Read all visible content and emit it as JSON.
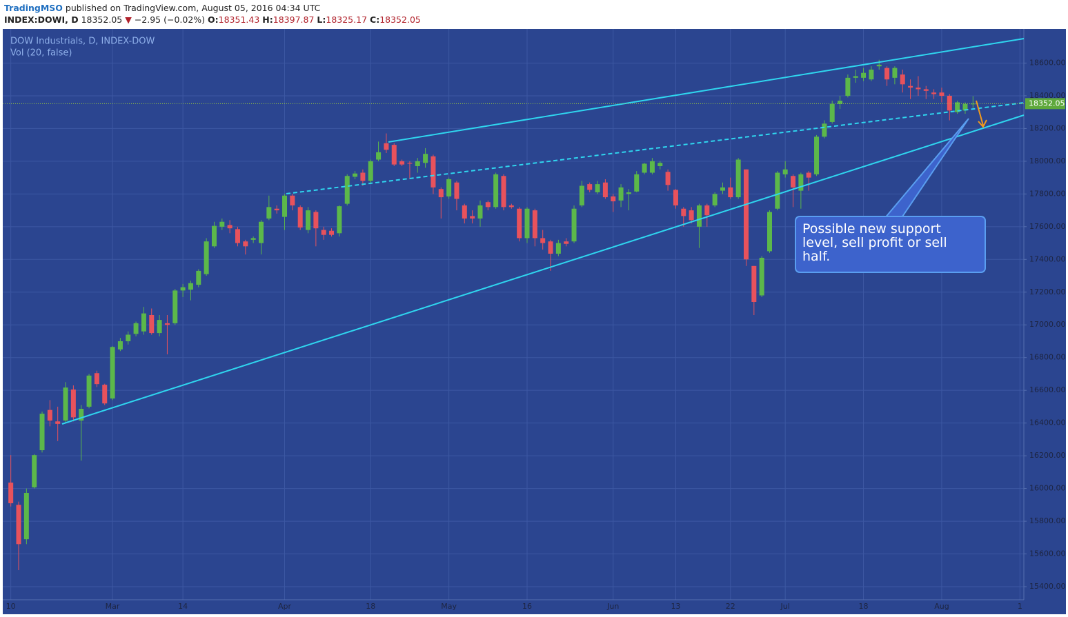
{
  "header": {
    "publisher": "TradingMSO",
    "published": "published on TradingView.com, August 05, 2016 04:34 UTC",
    "symbol": "INDEX:DOWI, D",
    "last": "18352.05",
    "arrow": "▼",
    "change": "−2.95 (−0.02%)",
    "o_label": "O:",
    "o": "18351.43",
    "h_label": "H:",
    "h": "18397.87",
    "l_label": "L:",
    "l": "18325.17",
    "c_label": "C:",
    "c": "18352.05"
  },
  "chart_data": {
    "type": "candlestick",
    "title": "DOW Industrials, D, INDEX-DOW",
    "indicator": "Vol (20, false)",
    "annotation": "Possible new support level, sell profit or sell half.",
    "up_color": "#5cb84a",
    "down_color": "#e8525c",
    "grid": true,
    "ylim": [
      15320,
      18800
    ],
    "yticks": [
      {
        "value": 15400,
        "label": "15400.00"
      },
      {
        "value": 15600,
        "label": "15600.00"
      },
      {
        "value": 15800,
        "label": "15800.00"
      },
      {
        "value": 16000,
        "label": "16000.00"
      },
      {
        "value": 16200,
        "label": "16200.00"
      },
      {
        "value": 16400,
        "label": "16400.00"
      },
      {
        "value": 16600,
        "label": "16600.00"
      },
      {
        "value": 16800,
        "label": "16800.00"
      },
      {
        "value": 17000,
        "label": "17000.00"
      },
      {
        "value": 17200,
        "label": "17200.00"
      },
      {
        "value": 17400,
        "label": "17400.00"
      },
      {
        "value": 17600,
        "label": "17600.00"
      },
      {
        "value": 17800,
        "label": "17800.00"
      },
      {
        "value": 18000,
        "label": "18000.00"
      },
      {
        "value": 18200,
        "label": "18200.00"
      },
      {
        "value": 18400,
        "label": "18400.00"
      },
      {
        "value": 18600,
        "label": "18600.00"
      }
    ],
    "categories": [
      "10",
      null,
      null,
      null,
      null,
      null,
      null,
      null,
      null,
      null,
      null,
      null,
      null,
      "Mar",
      null,
      null,
      null,
      null,
      null,
      null,
      null,
      null,
      "14",
      null,
      null,
      null,
      null,
      null,
      null,
      null,
      null,
      null,
      null,
      null,
      null,
      "Apr",
      null,
      null,
      null,
      null,
      null,
      null,
      null,
      null,
      null,
      null,
      "18",
      null,
      null,
      null,
      null,
      null,
      null,
      null,
      null,
      null,
      "May",
      null,
      null,
      null,
      null,
      null,
      null,
      null,
      null,
      null,
      "16",
      null,
      null,
      null,
      null,
      null,
      null,
      null,
      null,
      null,
      null,
      "Jun",
      null,
      null,
      null,
      null,
      null,
      null,
      null,
      "13",
      null,
      null,
      null,
      null,
      null,
      null,
      "22",
      null,
      null,
      null,
      null,
      null,
      null,
      "Jul",
      null,
      null,
      null,
      null,
      null,
      null,
      null,
      null,
      null,
      "18",
      null,
      null,
      null,
      null,
      null,
      null,
      null,
      null,
      null,
      "Aug",
      null,
      null,
      null,
      null,
      null,
      null,
      null,
      null,
      null,
      "1"
    ],
    "open": [
      16036,
      15900,
      15690,
      16007,
      16234,
      16480,
      16410,
      16415,
      16605,
      16415,
      16500,
      16705,
      16634,
      16550,
      16850,
      16900,
      16945,
      16960,
      17060,
      16950,
      17010,
      17010,
      17210,
      17215,
      17245,
      17310,
      17480,
      17600,
      17610,
      17585,
      17510,
      17520,
      17500,
      17650,
      17710,
      17660,
      17790,
      17720,
      17580,
      17690,
      17580,
      17575,
      17560,
      17740,
      17905,
      17930,
      17880,
      18010,
      18110,
      18100,
      18000,
      17990,
      17970,
      17990,
      18030,
      17830,
      17785,
      17870,
      17730,
      17665,
      17650,
      17750,
      17720,
      17910,
      17730,
      17710,
      17530,
      17700,
      17530,
      17510,
      17435,
      17510,
      17510,
      17730,
      17860,
      17810,
      17870,
      17785,
      17760,
      17800,
      17815,
      17930,
      17930,
      17970,
      17935,
      17825,
      17710,
      17700,
      17600,
      17730,
      17730,
      17820,
      17840,
      17780,
      17950,
      17360,
      17180,
      17450,
      17710,
      17920,
      17910,
      17820,
      17930,
      17920,
      18150,
      18240,
      18350,
      18400,
      18510,
      18510,
      18500,
      18580,
      18570,
      18510,
      18530,
      18460,
      18450,
      18440,
      18420,
      18420,
      18400,
      18300,
      18310,
      18351.43,
      null,
      null,
      null,
      null,
      null,
      null
    ],
    "high": [
      16204,
      15920,
      16000,
      16210,
      16470,
      16540,
      16500,
      16650,
      16630,
      16510,
      16700,
      16720,
      16640,
      16870,
      16920,
      16960,
      17020,
      17110,
      17100,
      17060,
      17060,
      17220,
      17250,
      17270,
      17340,
      17530,
      17630,
      17650,
      17640,
      17600,
      17520,
      17540,
      17640,
      17790,
      17730,
      17800,
      17800,
      17730,
      17720,
      17700,
      17600,
      17590,
      17730,
      17920,
      17940,
      17950,
      18010,
      18120,
      18170,
      18110,
      18010,
      18000,
      18020,
      18080,
      18040,
      17840,
      17900,
      17880,
      17740,
      17700,
      17760,
      17760,
      17930,
      17920,
      17740,
      17720,
      17720,
      17710,
      17580,
      17520,
      17520,
      17530,
      17730,
      17880,
      17870,
      17880,
      17890,
      17800,
      17860,
      17830,
      17940,
      17990,
      18020,
      18000,
      17950,
      17830,
      17720,
      17720,
      17740,
      17740,
      17810,
      17870,
      17900,
      18020,
      17950,
      17360,
      17420,
      17700,
      17940,
      18000,
      17920,
      17930,
      17940,
      18160,
      18250,
      18370,
      18400,
      18530,
      18560,
      18570,
      18580,
      18620,
      18580,
      18580,
      18560,
      18500,
      18520,
      18460,
      18440,
      18450,
      18410,
      18370,
      18360,
      18397.87,
      null,
      null,
      null,
      null,
      null,
      null
    ],
    "low": [
      15890,
      15501,
      15660,
      16000,
      16220,
      16380,
      16290,
      16400,
      16410,
      16170,
      16490,
      16620,
      16510,
      16540,
      16840,
      16880,
      16930,
      16940,
      16940,
      16930,
      16820,
      17000,
      17170,
      17150,
      17230,
      17300,
      17470,
      17580,
      17560,
      17480,
      17430,
      17500,
      17430,
      17640,
      17680,
      17580,
      17700,
      17580,
      17560,
      17480,
      17520,
      17540,
      17540,
      17730,
      17890,
      17850,
      17860,
      18000,
      18050,
      17970,
      17970,
      17890,
      17930,
      17960,
      17800,
      17650,
      17770,
      17700,
      17620,
      17620,
      17600,
      17700,
      17710,
      17700,
      17710,
      17510,
      17500,
      17480,
      17460,
      17330,
      17420,
      17480,
      17500,
      17720,
      17810,
      17800,
      17770,
      17690,
      17720,
      17700,
      17810,
      17920,
      17920,
      17950,
      17820,
      17710,
      17600,
      17620,
      17470,
      17600,
      17720,
      17800,
      17770,
      17770,
      17360,
      17060,
      17170,
      17440,
      17700,
      17900,
      17720,
      17710,
      17820,
      17910,
      18140,
      18230,
      18320,
      18390,
      18480,
      18490,
      18490,
      18560,
      18460,
      18470,
      18420,
      18380,
      18400,
      18380,
      18380,
      18360,
      18250,
      18290,
      18290,
      18325.17,
      null,
      null,
      null,
      null,
      null,
      null
    ],
    "close": [
      15910,
      15660,
      15973,
      16204,
      16457,
      16415,
      16395,
      16617,
      16435,
      16487,
      16690,
      16638,
      16520,
      16865,
      16900,
      16940,
      17010,
      17070,
      16950,
      17030,
      17000,
      17210,
      17230,
      17255,
      17330,
      17510,
      17605,
      17630,
      17590,
      17500,
      17480,
      17530,
      17630,
      17720,
      17700,
      17790,
      17730,
      17595,
      17700,
      17590,
      17550,
      17550,
      17725,
      17910,
      17925,
      17880,
      18000,
      18055,
      18070,
      17980,
      17980,
      17985,
      18000,
      18045,
      17840,
      17780,
      17890,
      17770,
      17650,
      17650,
      17730,
      17720,
      17920,
      17720,
      17720,
      17530,
      17710,
      17530,
      17500,
      17435,
      17500,
      17495,
      17710,
      17850,
      17825,
      17860,
      17780,
      17755,
      17840,
      17810,
      17920,
      17985,
      18000,
      17990,
      17855,
      17730,
      17665,
      17640,
      17730,
      17670,
      17800,
      17840,
      17780,
      18010,
      17400,
      17140,
      17410,
      17690,
      17930,
      17950,
      17840,
      17920,
      17900,
      18150,
      18230,
      18350,
      18370,
      18510,
      18520,
      18540,
      18560,
      18590,
      18500,
      18570,
      18470,
      18450,
      18440,
      18430,
      18410,
      18400,
      18310,
      18360,
      18350,
      18352.05,
      null,
      null,
      null,
      null,
      null,
      null
    ]
  }
}
